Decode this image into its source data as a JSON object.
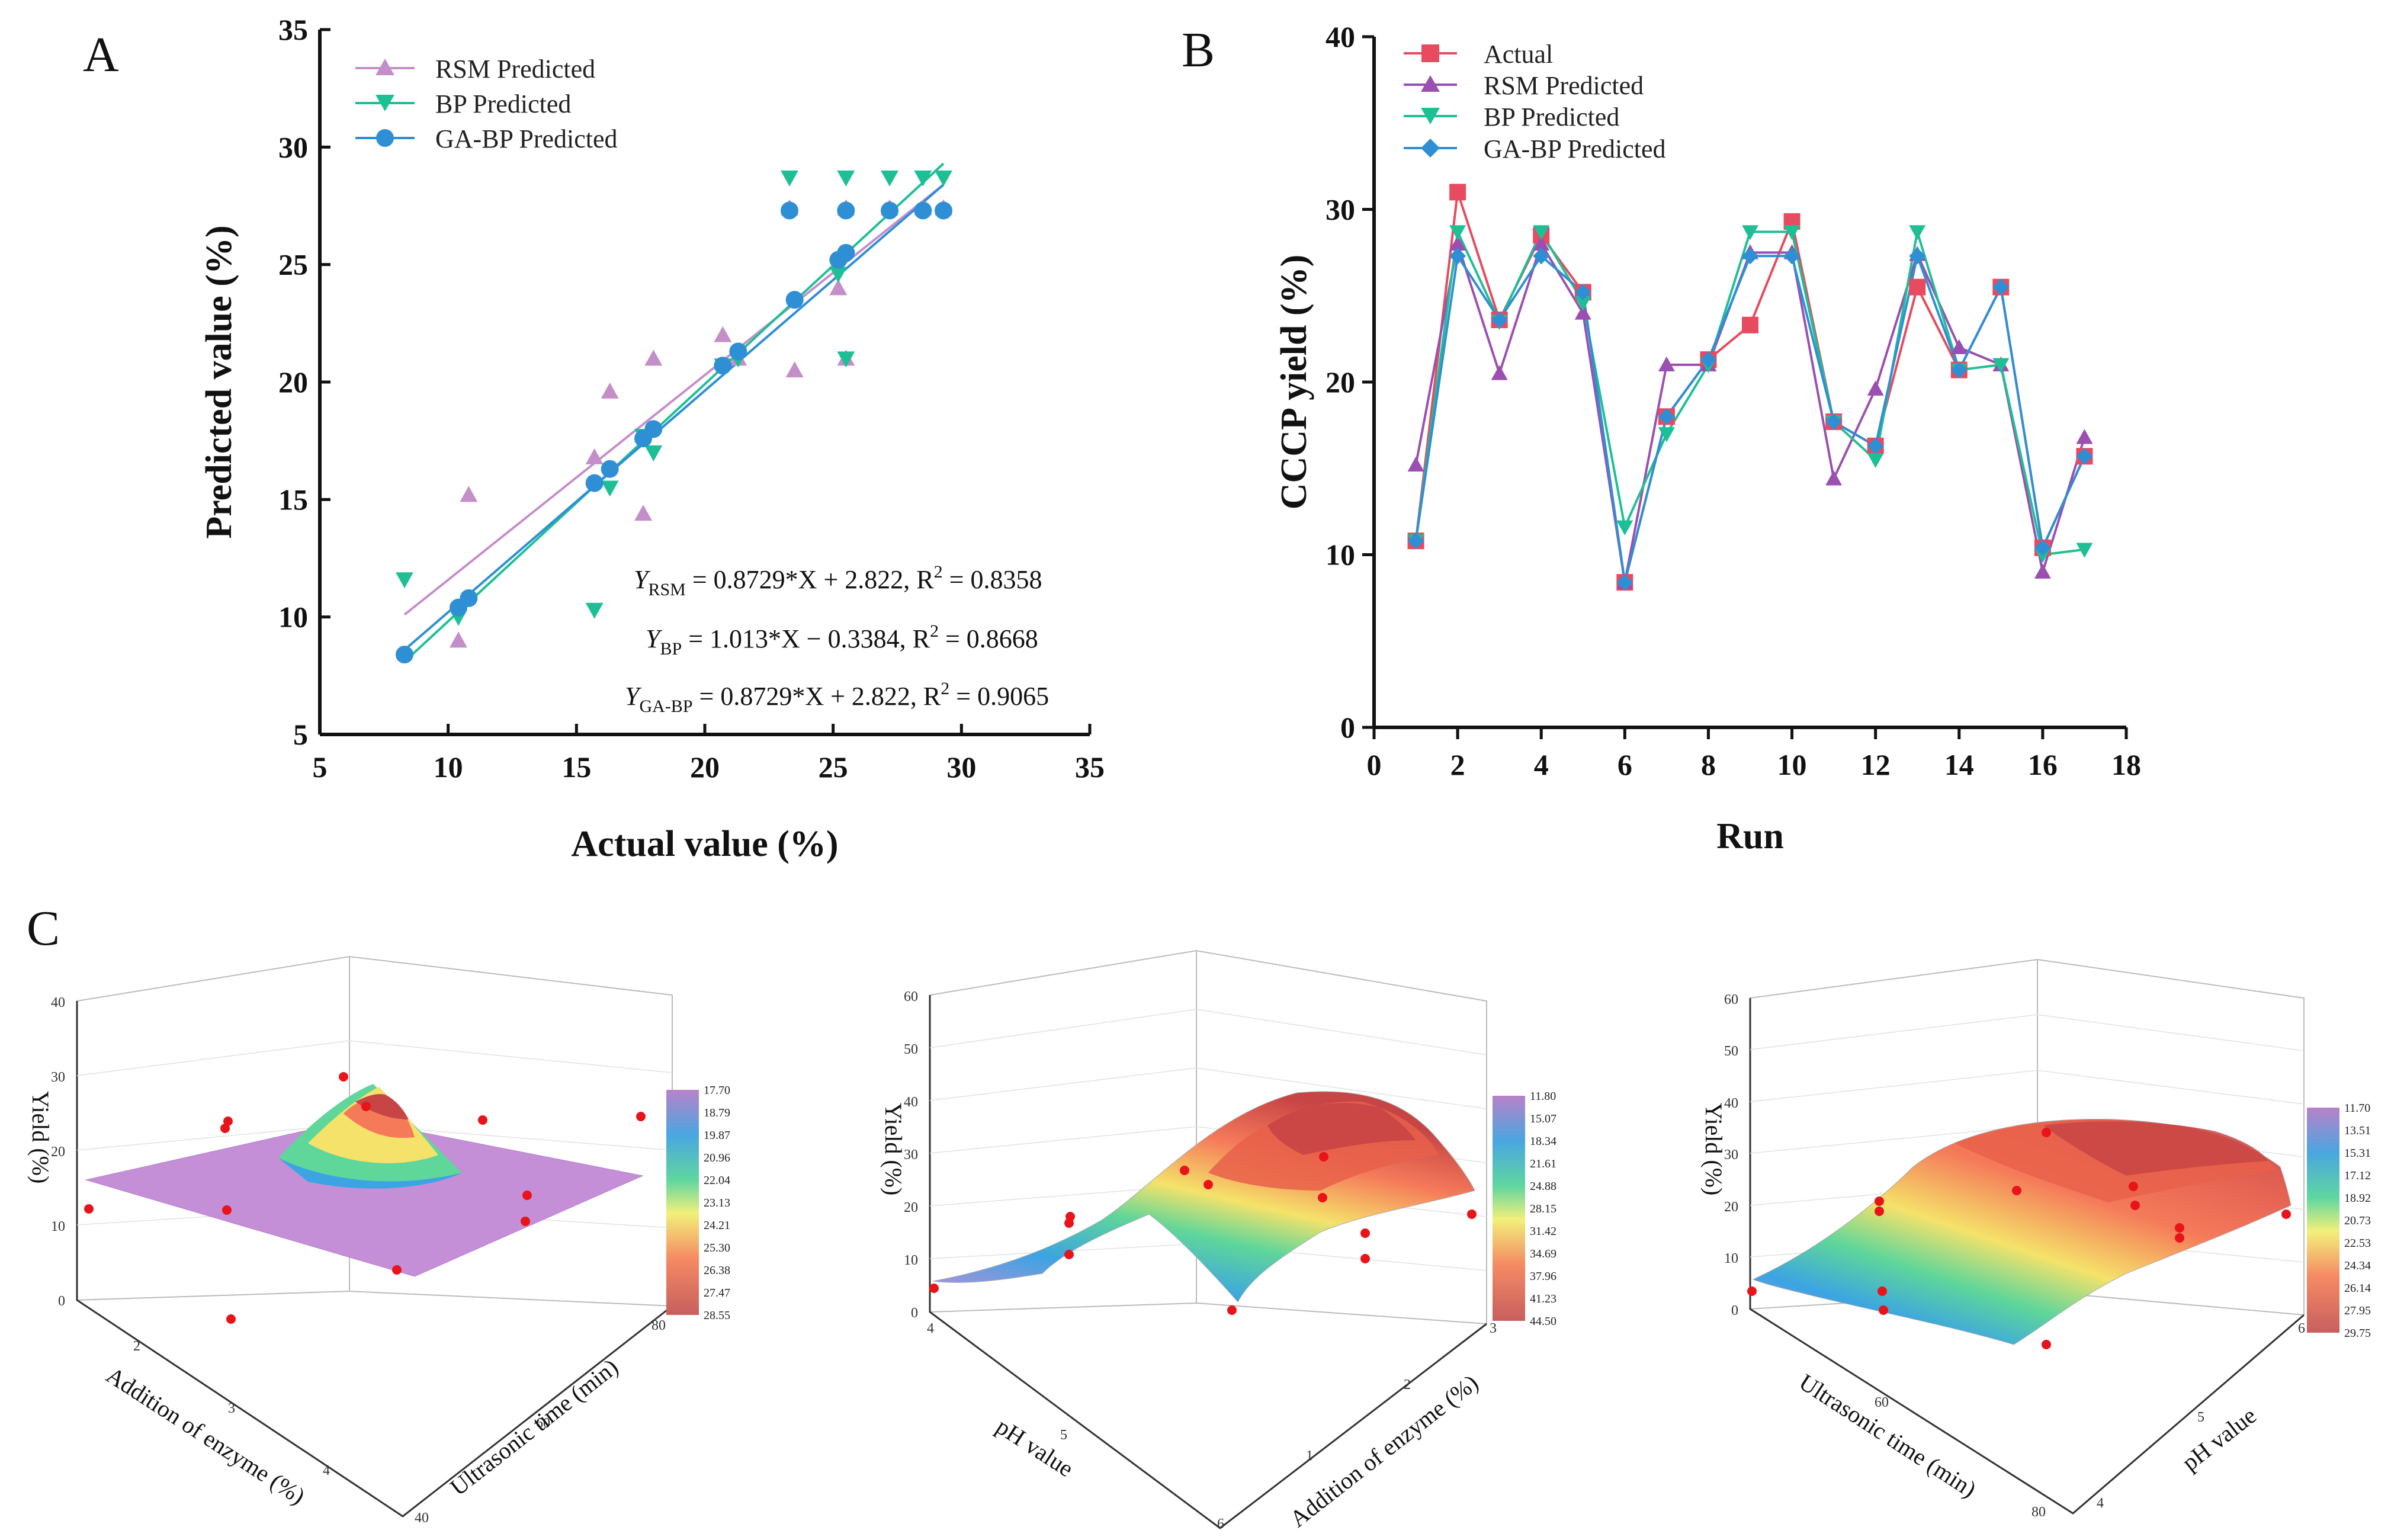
{
  "panels": {
    "A": {
      "letter": "A"
    },
    "B": {
      "letter": "B"
    },
    "C": {
      "letter": "C"
    }
  },
  "colors": {
    "actual": "#e84a5f",
    "rsm": "#c48fc9",
    "bp": "#1fbf96",
    "gabp": "#2f8fd4",
    "rsm_b": "#9b4fb0"
  },
  "chart_data": [
    {
      "id": "A",
      "type": "scatter",
      "xlabel": "Actual value (%)",
      "ylabel": "Predicted value (%)",
      "xlim": [
        5,
        35
      ],
      "ylim": [
        5,
        35
      ],
      "xticks": [
        5,
        10,
        15,
        20,
        25,
        30,
        35
      ],
      "yticks": [
        5,
        10,
        15,
        20,
        25,
        30,
        35
      ],
      "legend": [
        "RSM Predicted",
        "BP Predicted",
        "GA-BP Predicted"
      ],
      "series": [
        {
          "name": "RSM Predicted",
          "marker": "triangle-up",
          "x": [
            10.4,
            10.8,
            15.7,
            16.3,
            17.6,
            18.0,
            20.7,
            21.3,
            23.5,
            25.2,
            25.5,
            23.3,
            25.5,
            27.2,
            28.5,
            29.3
          ],
          "y": [
            9.0,
            15.2,
            16.8,
            19.6,
            14.4,
            21.0,
            22.0,
            21.0,
            20.5,
            24.0,
            21.0,
            27.4,
            27.4,
            27.4,
            27.4,
            27.4
          ]
        },
        {
          "name": "BP Predicted",
          "marker": "triangle-down",
          "x": [
            8.3,
            10.4,
            15.7,
            16.3,
            17.6,
            18.0,
            20.7,
            21.3,
            25.2,
            25.5,
            23.3,
            25.5,
            27.2,
            28.5,
            29.3
          ],
          "y": [
            11.6,
            10.0,
            10.3,
            15.5,
            17.7,
            17.0,
            20.7,
            21.0,
            24.6,
            21.0,
            28.7,
            28.7,
            28.7,
            28.7,
            28.7
          ]
        },
        {
          "name": "GA-BP Predicted",
          "marker": "circle",
          "x": [
            8.3,
            10.4,
            10.8,
            15.7,
            16.3,
            17.6,
            18.0,
            20.7,
            21.3,
            23.5,
            25.2,
            25.5,
            23.3,
            25.5,
            27.2,
            28.5,
            29.3
          ],
          "y": [
            8.4,
            10.4,
            10.8,
            15.7,
            16.3,
            17.6,
            18.0,
            20.7,
            21.3,
            23.5,
            25.2,
            25.5,
            27.3,
            27.3,
            27.3,
            27.3,
            27.3
          ]
        }
      ],
      "fits": [
        {
          "name": "RSM",
          "x": [
            8.3,
            29.3
          ],
          "y": [
            10.1,
            28.4
          ]
        },
        {
          "name": "BP",
          "x": [
            8.3,
            29.3
          ],
          "y": [
            8.1,
            29.3
          ]
        },
        {
          "name": "GA-BP",
          "x": [
            8.3,
            29.3
          ],
          "y": [
            8.6,
            28.4
          ]
        }
      ],
      "equations": {
        "rsm": {
          "pre": "Y",
          "sub": "RSM",
          "post": " = 0.8729*X + 2.822, R",
          "sup": "2",
          "tail": " = 0.8358"
        },
        "bp": {
          "pre": "Y",
          "sub": "BP",
          "post": " = 1.013*X − 0.3384, R",
          "sup": "2",
          "tail": " = 0.8668"
        },
        "gabp": {
          "pre": "Y",
          "sub": "GA-BP",
          "post": " = 0.8729*X + 2.822, R",
          "sup": "2",
          "tail": " = 0.9065"
        }
      }
    },
    {
      "id": "B",
      "type": "line",
      "xlabel": "Run",
      "ylabel": "CCCP yield (%)",
      "xlim": [
        0,
        18
      ],
      "ylim": [
        0,
        40
      ],
      "xticks": [
        0,
        2,
        4,
        6,
        8,
        10,
        12,
        14,
        16,
        18
      ],
      "yticks": [
        0,
        10,
        20,
        30,
        40
      ],
      "x": [
        1,
        2,
        3,
        4,
        5,
        6,
        7,
        8,
        9,
        10,
        11,
        12,
        13,
        14,
        15,
        16,
        17
      ],
      "series": [
        {
          "name": "Actual",
          "marker": "square",
          "values": [
            10.8,
            31.0,
            23.6,
            28.5,
            25.2,
            8.4,
            18.0,
            21.3,
            23.3,
            29.3,
            17.7,
            16.3,
            25.5,
            20.7,
            25.5,
            10.4,
            15.7
          ]
        },
        {
          "name": "RSM Predicted",
          "marker": "triangle-up",
          "values": [
            15.2,
            28.0,
            20.5,
            28.0,
            24.0,
            8.4,
            21.0,
            21.0,
            27.5,
            27.5,
            14.4,
            19.6,
            27.4,
            22.0,
            21.0,
            9.0,
            16.8
          ]
        },
        {
          "name": "BP Predicted",
          "marker": "triangle-down",
          "values": [
            10.8,
            28.7,
            23.5,
            28.7,
            24.6,
            11.6,
            17.0,
            21.0,
            28.7,
            28.7,
            17.7,
            15.5,
            28.7,
            20.7,
            21.0,
            10.0,
            10.3
          ]
        },
        {
          "name": "GA-BP Predicted",
          "marker": "diamond",
          "values": [
            10.8,
            27.3,
            23.6,
            27.3,
            25.2,
            8.4,
            18.0,
            21.3,
            27.3,
            27.3,
            17.7,
            16.3,
            27.3,
            20.7,
            25.5,
            10.4,
            15.7
          ]
        }
      ]
    },
    {
      "id": "C1",
      "type": "surface",
      "zlabel": "Yield (%)",
      "xlabel": "Addition of enzyme (%)",
      "ylabel": "Ultrasonic time (min)",
      "zticks": [
        "0",
        "10",
        "20",
        "30",
        "40"
      ],
      "xticks": [
        "2",
        "3",
        "4"
      ],
      "yticks": [
        "40",
        "60",
        "80"
      ],
      "colorbar": [
        "17.70",
        "18.79",
        "19.87",
        "20.96",
        "22.04",
        "23.13",
        "24.21",
        "25.30",
        "26.38",
        "27.47",
        "28.55"
      ]
    },
    {
      "id": "C2",
      "type": "surface",
      "zlabel": "Yield (%)",
      "xlabel": "pH value",
      "ylabel": "Addition of enzyme (%)",
      "zticks": [
        "0",
        "10",
        "20",
        "30",
        "40",
        "50",
        "60"
      ],
      "xticks": [
        "4",
        "5",
        "6"
      ],
      "yticks": [
        "1",
        "2",
        "3"
      ],
      "colorbar": [
        "11.80",
        "15.07",
        "18.34",
        "21.61",
        "24.88",
        "28.15",
        "31.42",
        "34.69",
        "37.96",
        "41.23",
        "44.50"
      ]
    },
    {
      "id": "C3",
      "type": "surface",
      "zlabel": "Yield (%)",
      "xlabel": "Ultrasonic time (min)",
      "ylabel": "pH value",
      "zticks": [
        "0",
        "10",
        "20",
        "30",
        "40",
        "50",
        "60"
      ],
      "xticks": [
        "60",
        "80"
      ],
      "yticks": [
        "4",
        "5",
        "6"
      ],
      "colorbar": [
        "11.70",
        "13.51",
        "15.31",
        "17.12",
        "18.92",
        "20.73",
        "22.53",
        "24.34",
        "26.14",
        "27.95",
        "29.75"
      ]
    }
  ]
}
